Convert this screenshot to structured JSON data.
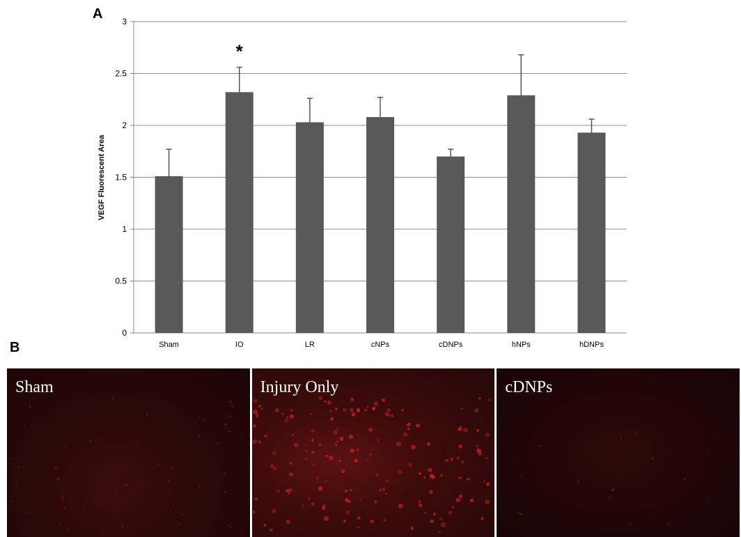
{
  "panel_a_label": "A",
  "panel_b_label": "B",
  "chart_data": {
    "type": "bar",
    "categories": [
      "Sham",
      "IO",
      "LR",
      "cNPs",
      "cDNPs",
      "hNPs",
      "hDNPs"
    ],
    "values": [
      1.51,
      2.32,
      2.03,
      2.08,
      1.7,
      2.29,
      1.93
    ],
    "errors": [
      0.26,
      0.24,
      0.23,
      0.19,
      0.07,
      0.39,
      0.13
    ],
    "ylabel": "VEGF Fluorescent Area",
    "xlabel": "",
    "ylim": [
      0,
      3
    ],
    "yticks": [
      "0",
      "0.5",
      "1",
      "1.5",
      "2",
      "2.5",
      "3"
    ],
    "grid": true,
    "bar_color": "#595959",
    "annotations": [
      {
        "category": "IO",
        "text": "*"
      }
    ]
  },
  "images": [
    {
      "label": "Sham"
    },
    {
      "label": "Injury Only"
    },
    {
      "label": "cDNPs"
    }
  ]
}
